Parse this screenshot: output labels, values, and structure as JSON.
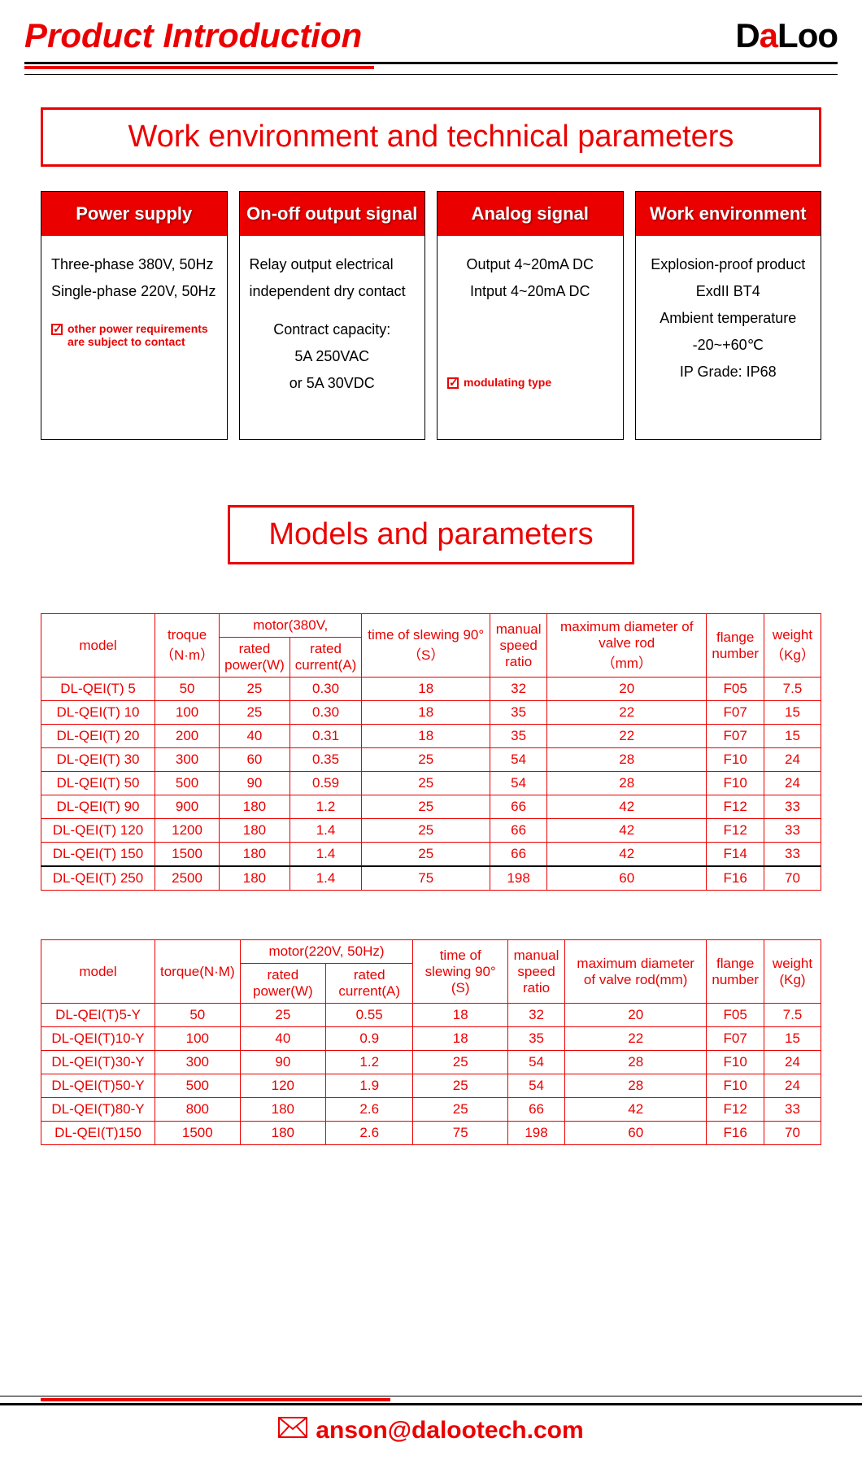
{
  "header": {
    "title": "Product Introduction",
    "logo_parts": {
      "p1": "D",
      "p2": "a",
      "p3": "L",
      "p4": "oo"
    }
  },
  "section_titles": {
    "work_tech": "Work environment and technical parameters",
    "models": "Models and parameters"
  },
  "cards": {
    "power": {
      "title": "Power supply",
      "line1": "Three-phase 380V, 50Hz",
      "line2": "Single-phase 220V, 50Hz",
      "note": "other power requirements are subject to contact"
    },
    "onoff": {
      "title": "On-off output signal",
      "line1": "Relay output electrical",
      "line2": "independent dry contact",
      "line3": "Contract capacity:",
      "line4": "5A 250VAC",
      "line5": "or 5A 30VDC"
    },
    "analog": {
      "title": "Analog signal",
      "line1": "Output 4~20mA DC",
      "line2": "Intput 4~20mA DC",
      "note": "modulating type"
    },
    "env": {
      "title": "Work environment",
      "line1": "Explosion-proof product",
      "line2": "ExdII BT4",
      "line3": "Ambient temperature",
      "line4": "-20~+60℃",
      "line5": "IP Grade: IP68"
    }
  },
  "table1": {
    "headers": {
      "model": "model",
      "torque": "troque",
      "torque_unit": "（N·m）",
      "motor": "motor(380V,",
      "rated_power": "rated power(W)",
      "rated_current": "rated current(A)",
      "time": "time of slewing 90°（S）",
      "manual": "manual speed ratio",
      "maxdia": "maximum diameter of valve rod",
      "maxdia_unit": "（mm）",
      "flange": "flange number",
      "weight": "weight",
      "weight_unit": "（Kg）"
    },
    "rows": [
      {
        "m": "DL-QEI(T) 5",
        "t": "50",
        "rp": "25",
        "rc": "0.30",
        "ts": "18",
        "ms": "32",
        "md": "20",
        "fl": "F05",
        "w": "7.5"
      },
      {
        "m": "DL-QEI(T) 10",
        "t": "100",
        "rp": "25",
        "rc": "0.30",
        "ts": "18",
        "ms": "35",
        "md": "22",
        "fl": "F07",
        "w": "15"
      },
      {
        "m": "DL-QEI(T) 20",
        "t": "200",
        "rp": "40",
        "rc": "0.31",
        "ts": "18",
        "ms": "35",
        "md": "22",
        "fl": "F07",
        "w": "15"
      },
      {
        "m": "DL-QEI(T) 30",
        "t": "300",
        "rp": "60",
        "rc": "0.35",
        "ts": "25",
        "ms": "54",
        "md": "28",
        "fl": "F10",
        "w": "24"
      },
      {
        "m": "DL-QEI(T) 50",
        "t": "500",
        "rp": "90",
        "rc": "0.59",
        "ts": "25",
        "ms": "54",
        "md": "28",
        "fl": "F10",
        "w": "24"
      },
      {
        "m": "DL-QEI(T) 90",
        "t": "900",
        "rp": "180",
        "rc": "1.2",
        "ts": "25",
        "ms": "66",
        "md": "42",
        "fl": "F12",
        "w": "33"
      },
      {
        "m": "DL-QEI(T) 120",
        "t": "1200",
        "rp": "180",
        "rc": "1.4",
        "ts": "25",
        "ms": "66",
        "md": "42",
        "fl": "F12",
        "w": "33"
      },
      {
        "m": "DL-QEI(T) 150",
        "t": "1500",
        "rp": "180",
        "rc": "1.4",
        "ts": "25",
        "ms": "66",
        "md": "42",
        "fl": "F14",
        "w": "33",
        "special": true
      },
      {
        "m": "DL-QEI(T) 250",
        "t": "2500",
        "rp": "180",
        "rc": "1.4",
        "ts": "75",
        "ms": "198",
        "md": "60",
        "fl": "F16",
        "w": "70"
      }
    ]
  },
  "table2": {
    "headers": {
      "model": "model",
      "torque": "torque(N·M)",
      "motor": "motor(220V, 50Hz)",
      "rated_power": "rated power(W)",
      "rated_current": "rated current(A)",
      "time": "time of slewing 90°(S)",
      "manual": "manual speed ratio",
      "maxdia": "maximum diameter of valve rod(mm)",
      "flange": "flange number",
      "weight": "weight (Kg)"
    },
    "rows": [
      {
        "m": "DL-QEI(T)5-Y",
        "t": "50",
        "rp": "25",
        "rc": "0.55",
        "ts": "18",
        "ms": "32",
        "md": "20",
        "fl": "F05",
        "w": "7.5"
      },
      {
        "m": "DL-QEI(T)10-Y",
        "t": "100",
        "rp": "40",
        "rc": "0.9",
        "ts": "18",
        "ms": "35",
        "md": "22",
        "fl": "F07",
        "w": "15"
      },
      {
        "m": "DL-QEI(T)30-Y",
        "t": "300",
        "rp": "90",
        "rc": "1.2",
        "ts": "25",
        "ms": "54",
        "md": "28",
        "fl": "F10",
        "w": "24"
      },
      {
        "m": "DL-QEI(T)50-Y",
        "t": "500",
        "rp": "120",
        "rc": "1.9",
        "ts": "25",
        "ms": "54",
        "md": "28",
        "fl": "F10",
        "w": "24"
      },
      {
        "m": "DL-QEI(T)80-Y",
        "t": "800",
        "rp": "180",
        "rc": "2.6",
        "ts": "25",
        "ms": "66",
        "md": "42",
        "fl": "F12",
        "w": "33"
      },
      {
        "m": "DL-QEI(T)150",
        "t": "1500",
        "rp": "180",
        "rc": "2.6",
        "ts": "75",
        "ms": "198",
        "md": "60",
        "fl": "F16",
        "w": "70"
      }
    ]
  },
  "footer": {
    "email": "anson@dalootech.com"
  },
  "colors": {
    "accent": "#eb0000",
    "black": "#000000",
    "white": "#ffffff"
  }
}
